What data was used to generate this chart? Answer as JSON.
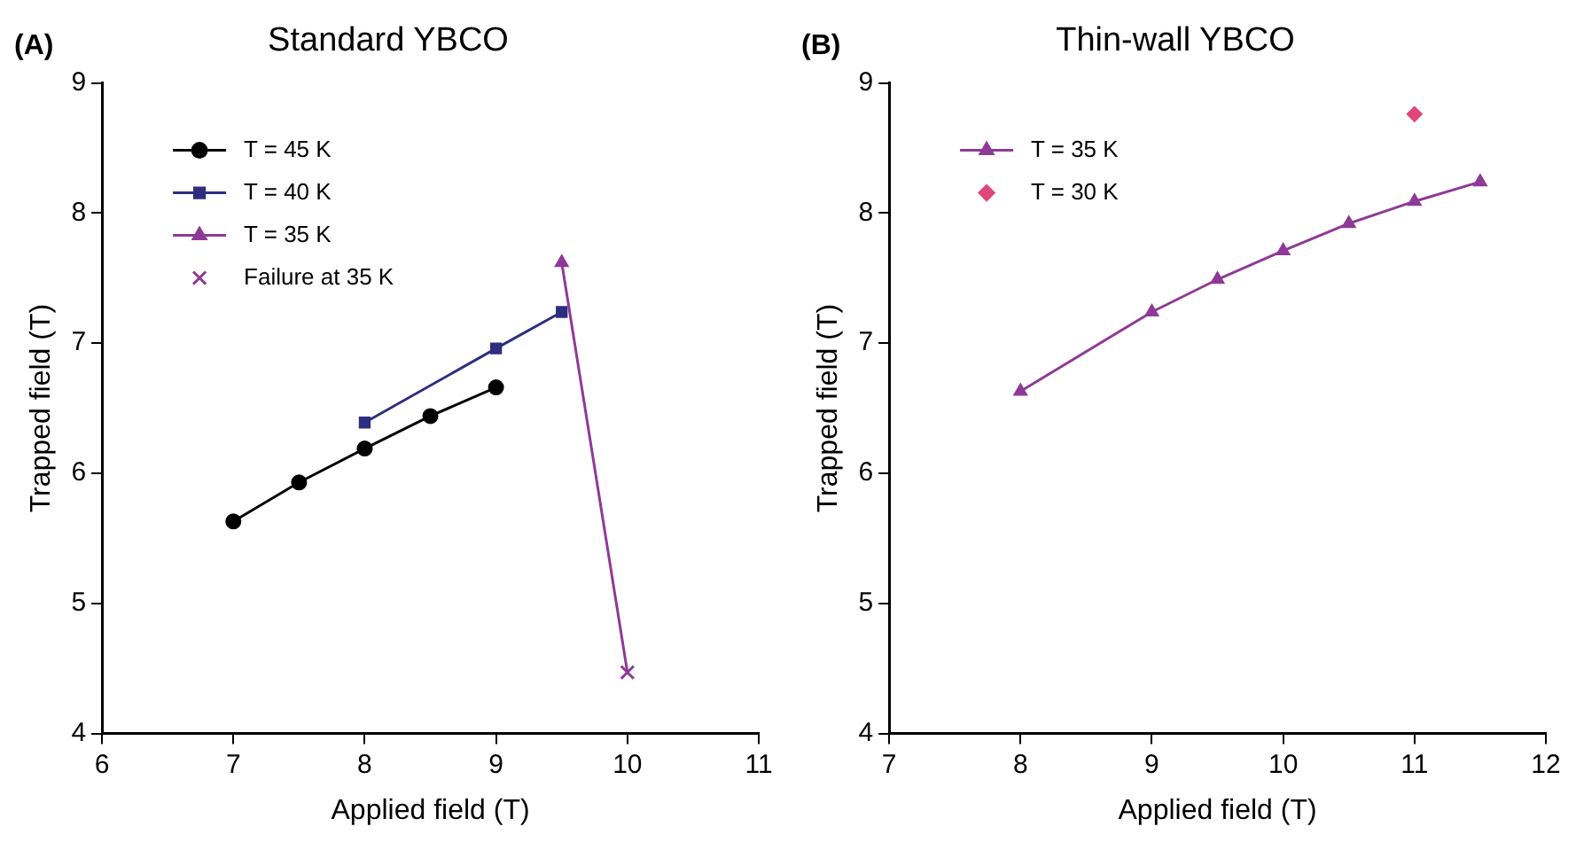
{
  "chart_data": [
    {
      "type": "line",
      "title": "Standard YBCO",
      "xlabel": "Applied field (T)",
      "ylabel": "Trapped field (T)",
      "annotations": [
        "(A)"
      ],
      "xlim": [
        6,
        11
      ],
      "xticks": [
        6,
        7,
        8,
        9,
        10,
        11
      ],
      "ylim": [
        4,
        9
      ],
      "yticks": [
        4,
        5,
        6,
        7,
        8,
        9
      ],
      "grid": false,
      "legend": "top left",
      "series": [
        {
          "name": "T = 45 K",
          "type": "line",
          "color": "#000000",
          "marker": "circle",
          "x": [
            7,
            7.5,
            8,
            8.5,
            9
          ],
          "values": [
            5.63,
            5.93,
            6.19,
            6.44,
            6.66
          ]
        },
        {
          "name": "T = 40 K",
          "type": "line",
          "color": "#2e2e7f",
          "marker": "square",
          "x": [
            8,
            9,
            9.5
          ],
          "values": [
            6.39,
            6.96,
            7.24
          ]
        },
        {
          "name": "T = 35 K",
          "type": "line",
          "color": "#8e3a96",
          "marker": "triangle",
          "x": [
            9.5,
            10
          ],
          "values": [
            7.62,
            4.47
          ]
        },
        {
          "name": "Failure at 35 K",
          "type": "scatter",
          "color": "#8e3a96",
          "marker": "cross",
          "x": [
            10
          ],
          "values": [
            4.47
          ]
        }
      ]
    },
    {
      "type": "line",
      "title": "Thin-wall YBCO",
      "xlabel": "Applied field (T)",
      "ylabel": "Trapped field (T)",
      "annotations": [
        "(B)"
      ],
      "xlim": [
        7,
        12
      ],
      "xticks": [
        7,
        8,
        9,
        10,
        11,
        12
      ],
      "ylim": [
        4,
        9
      ],
      "yticks": [
        4,
        5,
        6,
        7,
        8,
        9
      ],
      "grid": false,
      "legend": "top left",
      "series": [
        {
          "name": "T = 35 K",
          "type": "line",
          "color": "#8e3a96",
          "marker": "triangle",
          "x": [
            8,
            9,
            9.5,
            10,
            10.5,
            11,
            11.5
          ],
          "values": [
            6.63,
            7.24,
            7.49,
            7.71,
            7.92,
            8.09,
            8.24
          ]
        },
        {
          "name": "T = 30 K",
          "type": "scatter",
          "color": "#e0457b",
          "marker": "diamond",
          "x": [
            11
          ],
          "values": [
            8.76
          ]
        }
      ]
    }
  ]
}
